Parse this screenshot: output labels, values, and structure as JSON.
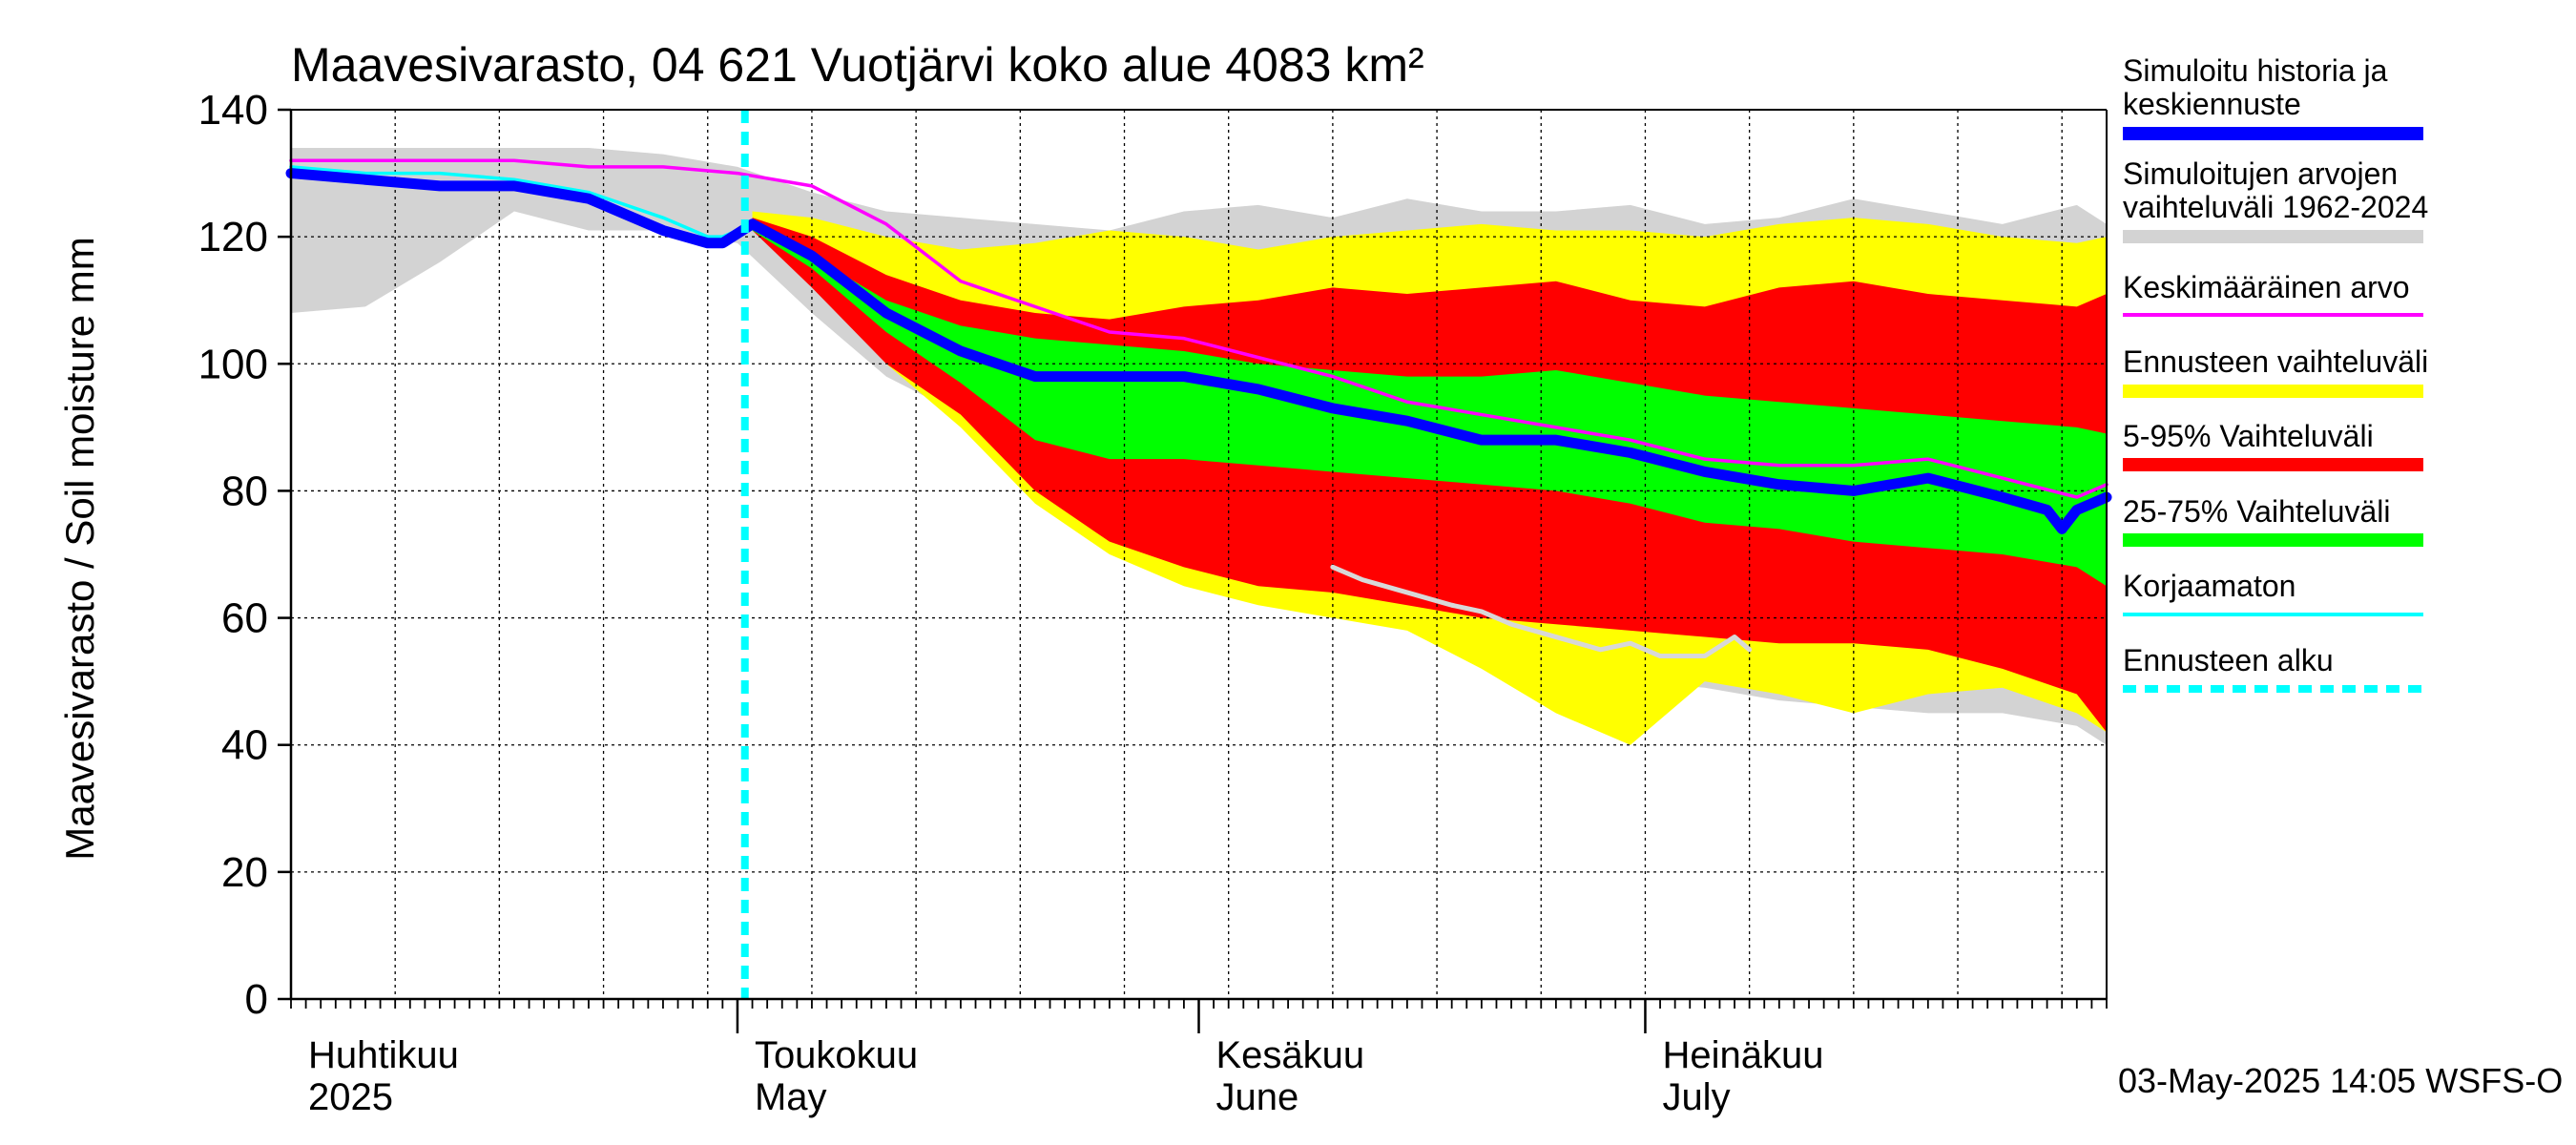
{
  "chart_data": {
    "type": "area",
    "title": "Maavesivarasto, 04 621 Vuotjärvi koko alue 4083 km²",
    "ylabel": "Maavesivarasto / Soil moisture   mm",
    "ylim": [
      0,
      140
    ],
    "yticks": [
      0,
      20,
      40,
      60,
      80,
      100,
      120,
      140
    ],
    "x_range_days": [
      0,
      122
    ],
    "x_start_date": "2025-04-01",
    "forecast_start_day": 30.5,
    "month_labels": [
      {
        "fi": "Huhtikuu",
        "en": "2025",
        "day": 0
      },
      {
        "fi": "Toukokuu",
        "en": "May",
        "day": 30
      },
      {
        "fi": "Kesäkuu",
        "en": "June",
        "day": 61
      },
      {
        "fi": "Heinäkuu",
        "en": "July",
        "day": 91
      }
    ],
    "footer": "03-May-2025 14:05 WSFS-O",
    "colors": {
      "history": "#0000ff",
      "range_hist": "#d3d3d3",
      "mean": "#ff00ff",
      "forecast_range": "#ffff00",
      "p5_95": "#ff0000",
      "p25_75": "#00ff00",
      "uncorrected": "#00ffff",
      "forecast_start": "#00ffff",
      "uncorrected_low": "#d8d8d8"
    },
    "legend": [
      {
        "label": "Simuloitu historia ja keskiennuste",
        "color": "#0000ff",
        "style": "thick"
      },
      {
        "label": "Simuloitujen arvojen vaihteluväli 1962-2024",
        "color": "#d3d3d3",
        "style": "thick"
      },
      {
        "label": "Keskimääräinen arvo",
        "color": "#ff00ff",
        "style": "thin"
      },
      {
        "label": "Ennusteen vaihteluväli",
        "color": "#ffff00",
        "style": "thick"
      },
      {
        "label": "5-95% Vaihteluväli",
        "color": "#ff0000",
        "style": "thick"
      },
      {
        "label": "25-75% Vaihteluväli",
        "color": "#00ff00",
        "style": "thick"
      },
      {
        "label": "Korjaamaton",
        "color": "#00ffff",
        "style": "thin"
      },
      {
        "label": "Ennusteen alku",
        "color": "#00ffff",
        "style": "dashed"
      }
    ],
    "series": {
      "hist_range": {
        "days": [
          0,
          5,
          10,
          15,
          20,
          25,
          30,
          35,
          40,
          45,
          50,
          55,
          60,
          65,
          70,
          75,
          80,
          85,
          90,
          95,
          100,
          105,
          110,
          115,
          120,
          122
        ],
        "upper": [
          134,
          134,
          134,
          134,
          134,
          133,
          131,
          127,
          124,
          123,
          122,
          121,
          124,
          125,
          123,
          126,
          124,
          124,
          125,
          122,
          123,
          126,
          124,
          122,
          125,
          122
        ],
        "lower": [
          108,
          109,
          116,
          124,
          121,
          121,
          119,
          108,
          98,
          92,
          85,
          80,
          72,
          66,
          62,
          60,
          55,
          52,
          50,
          49,
          47,
          46,
          45,
          45,
          43,
          40
        ]
      },
      "forecast_range": {
        "days": [
          31,
          35,
          40,
          45,
          50,
          55,
          60,
          65,
          70,
          75,
          80,
          85,
          90,
          95,
          100,
          105,
          110,
          115,
          120,
          122
        ],
        "upper": [
          124,
          123,
          120,
          118,
          119,
          121,
          120,
          118,
          120,
          121,
          122,
          121,
          121,
          120,
          122,
          123,
          122,
          120,
          119,
          120
        ],
        "lower": [
          121,
          113,
          100,
          90,
          78,
          70,
          65,
          62,
          60,
          58,
          52,
          45,
          40,
          50,
          48,
          45,
          48,
          49,
          45,
          42
        ]
      },
      "p5_95": {
        "days": [
          31,
          35,
          40,
          45,
          50,
          55,
          60,
          65,
          70,
          75,
          80,
          85,
          90,
          95,
          100,
          105,
          110,
          115,
          120,
          122
        ],
        "upper": [
          123,
          120,
          114,
          110,
          108,
          107,
          109,
          110,
          112,
          111,
          112,
          113,
          110,
          109,
          112,
          113,
          111,
          110,
          109,
          111
        ],
        "lower": [
          121,
          112,
          100,
          92,
          80,
          72,
          68,
          65,
          64,
          62,
          60,
          59,
          58,
          57,
          56,
          56,
          55,
          52,
          48,
          42
        ]
      },
      "p25_75": {
        "days": [
          31,
          35,
          40,
          45,
          50,
          55,
          60,
          65,
          70,
          75,
          80,
          85,
          90,
          95,
          100,
          105,
          110,
          115,
          120,
          122
        ],
        "upper": [
          122,
          117,
          110,
          106,
          104,
          103,
          102,
          100,
          99,
          98,
          98,
          99,
          97,
          95,
          94,
          93,
          92,
          91,
          90,
          89
        ],
        "lower": [
          121,
          115,
          105,
          97,
          88,
          85,
          85,
          84,
          83,
          82,
          81,
          80,
          78,
          75,
          74,
          72,
          71,
          70,
          68,
          65
        ]
      },
      "history": {
        "days": [
          0,
          5,
          10,
          15,
          20,
          25,
          28,
          29,
          31,
          35,
          40,
          45,
          50,
          55,
          60,
          65,
          70,
          75,
          80,
          85,
          90,
          95,
          100,
          105,
          110,
          115,
          118,
          119,
          120,
          122
        ],
        "values": [
          130,
          129,
          128,
          128,
          126,
          121,
          119,
          119,
          122,
          117,
          108,
          102,
          98,
          98,
          98,
          96,
          93,
          91,
          88,
          88,
          86,
          83,
          81,
          80,
          82,
          79,
          77,
          74,
          77,
          79
        ]
      },
      "mean": {
        "days": [
          0,
          5,
          10,
          15,
          20,
          25,
          30,
          35,
          40,
          45,
          50,
          55,
          60,
          65,
          70,
          75,
          80,
          85,
          90,
          95,
          100,
          105,
          110,
          115,
          120,
          122
        ],
        "values": [
          132,
          132,
          132,
          132,
          131,
          131,
          130,
          128,
          122,
          113,
          109,
          105,
          104,
          101,
          98,
          94,
          92,
          90,
          88,
          85,
          84,
          84,
          85,
          82,
          79,
          81
        ]
      },
      "uncorrected": {
        "days": [
          0,
          5,
          10,
          15,
          20,
          25,
          28,
          29,
          30
        ],
        "values": [
          131,
          130,
          130,
          129,
          127,
          123,
          120,
          120,
          121
        ]
      },
      "uncorrected_low": {
        "days": [
          70,
          72,
          75,
          78,
          80,
          82,
          85,
          88,
          90,
          92,
          95,
          97,
          98
        ],
        "values": [
          68,
          66,
          64,
          62,
          61,
          59,
          57,
          55,
          56,
          54,
          54,
          57,
          55
        ]
      }
    }
  }
}
